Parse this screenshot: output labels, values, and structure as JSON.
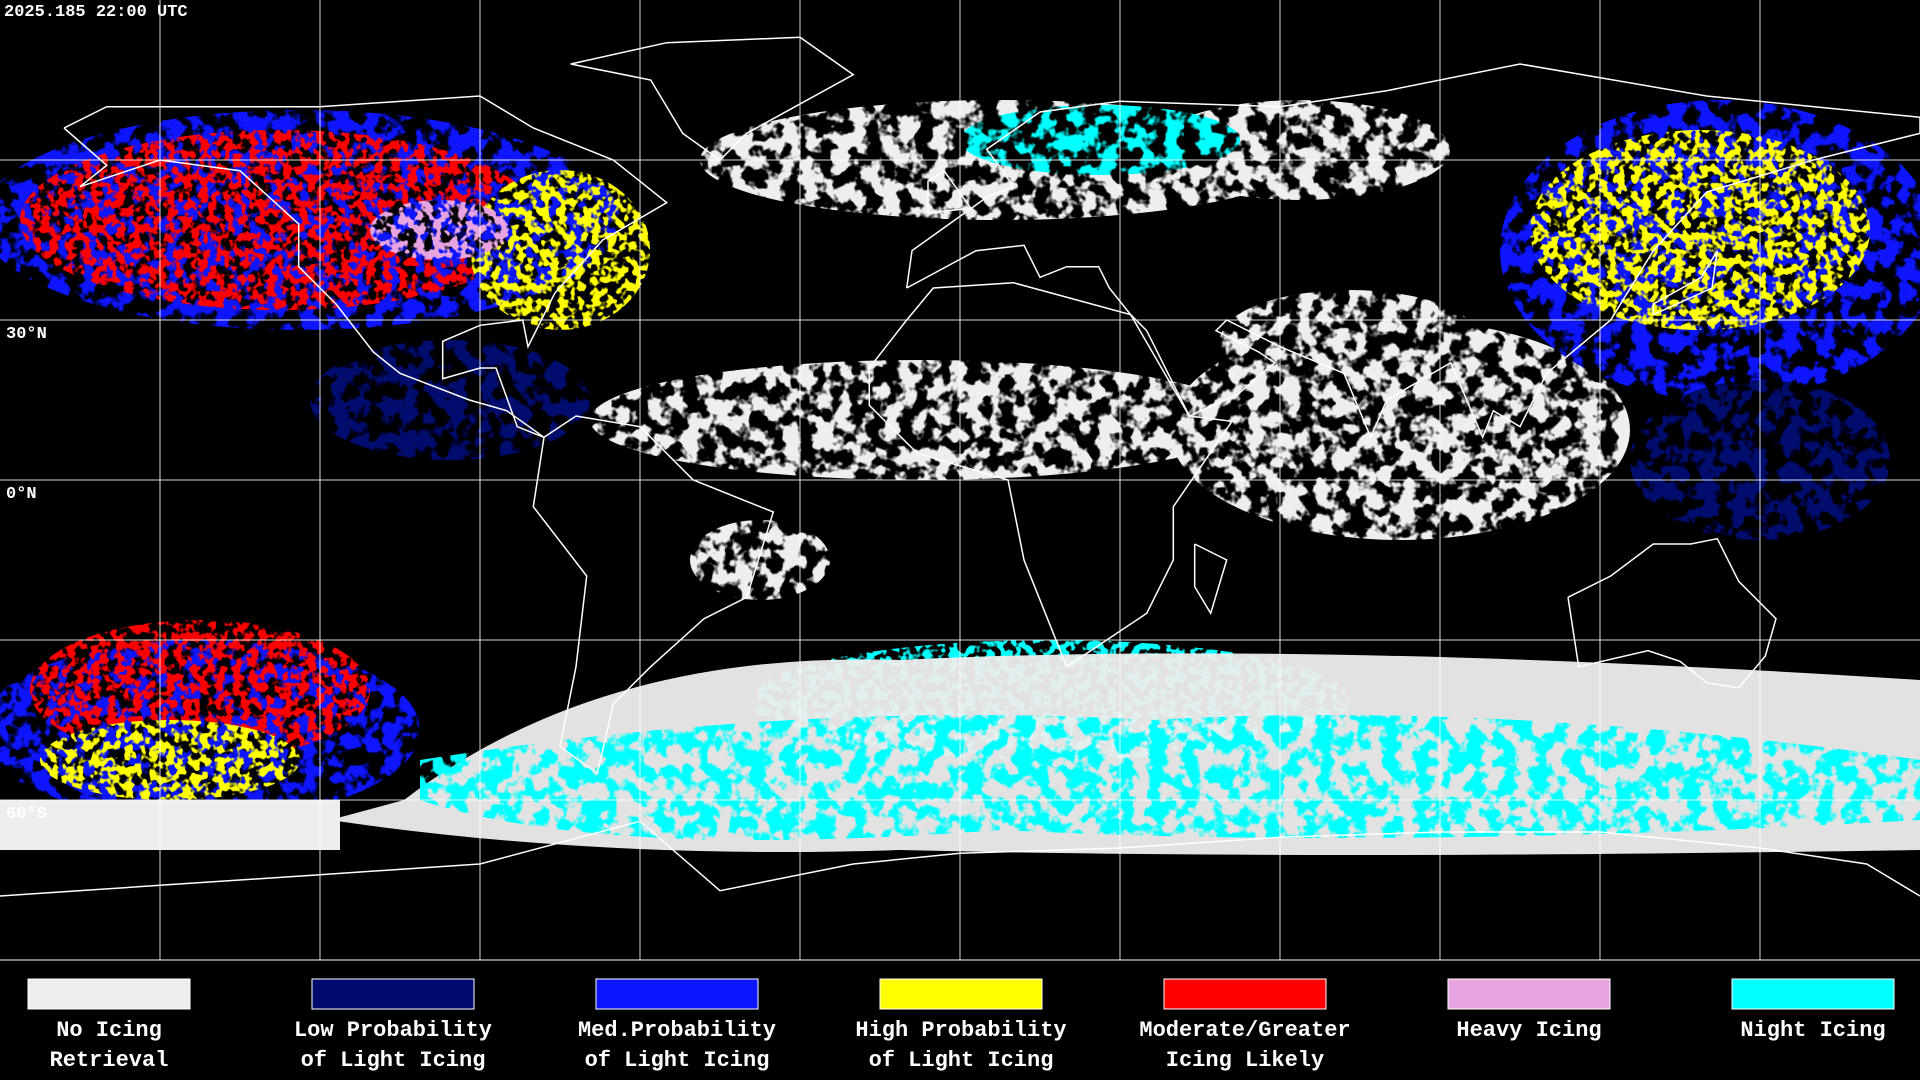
{
  "header": {
    "timestamp": "2025.185 22:00 UTC"
  },
  "map": {
    "latitude_labels": [
      "30°N",
      "0°N",
      "60°S"
    ]
  },
  "legend": {
    "items": [
      {
        "label": [
          "No Icing",
          "Retrieval"
        ],
        "color": "#eeeeee"
      },
      {
        "label": [
          "Low Probability",
          "of Light Icing"
        ],
        "color": "#000a6e"
      },
      {
        "label": [
          "Med.Probability",
          "of Light Icing"
        ],
        "color": "#0a14ff"
      },
      {
        "label": [
          "High Probability",
          "of Light Icing"
        ],
        "color": "#ffff00"
      },
      {
        "label": [
          "Moderate/Greater",
          "Icing Likely"
        ],
        "color": "#ff0000"
      },
      {
        "label": [
          "Heavy Icing"
        ],
        "color": "#e8a4e0"
      },
      {
        "label": [
          "Night Icing"
        ],
        "color": "#00ffff"
      }
    ]
  }
}
